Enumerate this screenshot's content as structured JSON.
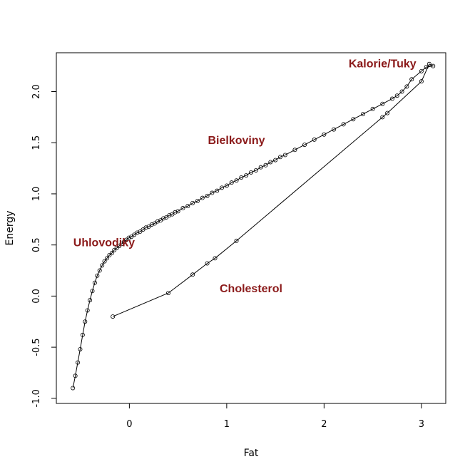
{
  "chart_data": {
    "type": "line",
    "xlabel": "Fat",
    "ylabel": "Energy",
    "xlim": [
      -0.75,
      3.25
    ],
    "ylim": [
      -1.05,
      2.38
    ],
    "x_ticks": [
      0,
      1,
      2,
      3
    ],
    "x_tick_labels": [
      "0",
      "1",
      "2",
      "3"
    ],
    "y_ticks": [
      -1.0,
      -0.5,
      0.0,
      0.5,
      1.0,
      1.5,
      2.0
    ],
    "y_tick_labels": [
      "-1.0",
      "-0.5",
      "0.0",
      "0.5",
      "1.0",
      "1.5",
      "2.0"
    ],
    "grid": false,
    "line_color": "#000000",
    "annotation_color": "#8B1A1A",
    "annotations": [
      {
        "text": "Kalorie/Tuky",
        "x": 2.6,
        "y": 2.28
      },
      {
        "text": "Bielkoviny",
        "x": 1.1,
        "y": 1.53
      },
      {
        "text": "Uhlovodiky",
        "x": -0.26,
        "y": 0.53
      },
      {
        "text": "Cholesterol",
        "x": 1.25,
        "y": 0.08
      }
    ],
    "series": [
      {
        "x": [
          -0.58,
          -0.555,
          -0.53,
          -0.505,
          -0.48,
          -0.455,
          -0.43,
          -0.405,
          -0.38,
          -0.355,
          -0.33,
          -0.305,
          -0.28,
          -0.255,
          -0.23,
          -0.205,
          -0.18,
          -0.155,
          -0.13,
          -0.105,
          -0.08,
          -0.055,
          -0.03,
          -0.005,
          0.02,
          0.05,
          0.08,
          0.11,
          0.14,
          0.17,
          0.2,
          0.23,
          0.26,
          0.29,
          0.32,
          0.35,
          0.38,
          0.41,
          0.44,
          0.47,
          0.5,
          0.55,
          0.6,
          0.65,
          0.7,
          0.75,
          0.8,
          0.85,
          0.9,
          0.95,
          1.0,
          1.05,
          1.1,
          1.15,
          1.2,
          1.25,
          1.3,
          1.35,
          1.4,
          1.45,
          1.5,
          1.55,
          1.6,
          1.7,
          1.8,
          1.9,
          2.0,
          2.1,
          2.2,
          2.3,
          2.4,
          2.5,
          2.6,
          2.7,
          2.75,
          2.8,
          2.85,
          2.9,
          3.0,
          3.05,
          3.12,
          3.08,
          3.0,
          2.65,
          2.6,
          1.1,
          0.88,
          0.8,
          0.65,
          0.4,
          -0.17
        ],
        "y": [
          -0.9,
          -0.78,
          -0.65,
          -0.52,
          -0.38,
          -0.25,
          -0.14,
          -0.04,
          0.05,
          0.13,
          0.2,
          0.25,
          0.3,
          0.34,
          0.37,
          0.4,
          0.42,
          0.45,
          0.47,
          0.49,
          0.51,
          0.53,
          0.55,
          0.57,
          0.58,
          0.6,
          0.62,
          0.63,
          0.65,
          0.67,
          0.68,
          0.7,
          0.71,
          0.73,
          0.74,
          0.76,
          0.77,
          0.79,
          0.8,
          0.82,
          0.83,
          0.86,
          0.88,
          0.91,
          0.93,
          0.96,
          0.98,
          1.01,
          1.03,
          1.06,
          1.08,
          1.11,
          1.13,
          1.16,
          1.18,
          1.21,
          1.23,
          1.26,
          1.28,
          1.31,
          1.33,
          1.36,
          1.38,
          1.43,
          1.48,
          1.53,
          1.58,
          1.63,
          1.68,
          1.73,
          1.78,
          1.83,
          1.88,
          1.93,
          1.96,
          2.0,
          2.05,
          2.12,
          2.2,
          2.24,
          2.25,
          2.27,
          2.1,
          1.79,
          1.75,
          0.54,
          0.37,
          0.32,
          0.21,
          0.03,
          -0.2
        ]
      }
    ]
  }
}
